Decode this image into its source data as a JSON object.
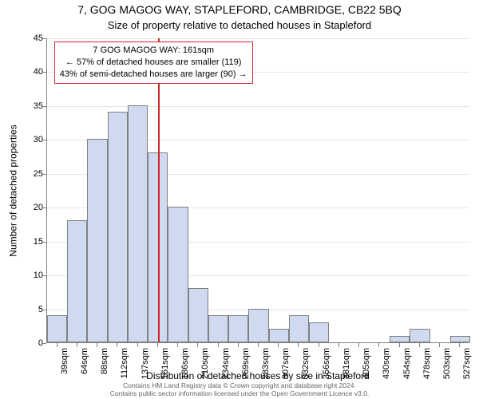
{
  "title": "7, GOG MAGOG WAY, STAPLEFORD, CAMBRIDGE, CB22 5BQ",
  "subtitle": "Size of property relative to detached houses in Stapleford",
  "yaxis_label": "Number of detached properties",
  "xaxis_label": "Distribution of detached houses by size in Stapleford",
  "chart": {
    "type": "histogram",
    "background_color": "#ffffff",
    "grid_color": "#e6e6e6",
    "axis_color": "#808080",
    "bar_fill": "#cfdaf0",
    "bar_border": "#808080",
    "marker_color": "#cc2a2a",
    "y": {
      "min": 0,
      "max": 45,
      "step": 5
    },
    "x_unit": "sqm",
    "x_labels": [
      39,
      64,
      88,
      112,
      137,
      161,
      186,
      210,
      234,
      259,
      283,
      307,
      332,
      356,
      381,
      405,
      430,
      454,
      478,
      503,
      527
    ],
    "bars": [
      4,
      18,
      30,
      34,
      35,
      28,
      20,
      8,
      4,
      4,
      5,
      2,
      4,
      3,
      0,
      0,
      0,
      1,
      2,
      0,
      1
    ],
    "marker_index": 5,
    "annotation": {
      "line1": "7 GOG MAGOG WAY: 161sqm",
      "line2": "← 57% of detached houses are smaller (119)",
      "line3": "43% of semi-detached houses are larger (90) →"
    }
  },
  "license": {
    "line1": "Contains HM Land Registry data © Crown copyright and database right 2024.",
    "line2": "Contains public sector information licensed under the Open Government Licence v3.0."
  }
}
